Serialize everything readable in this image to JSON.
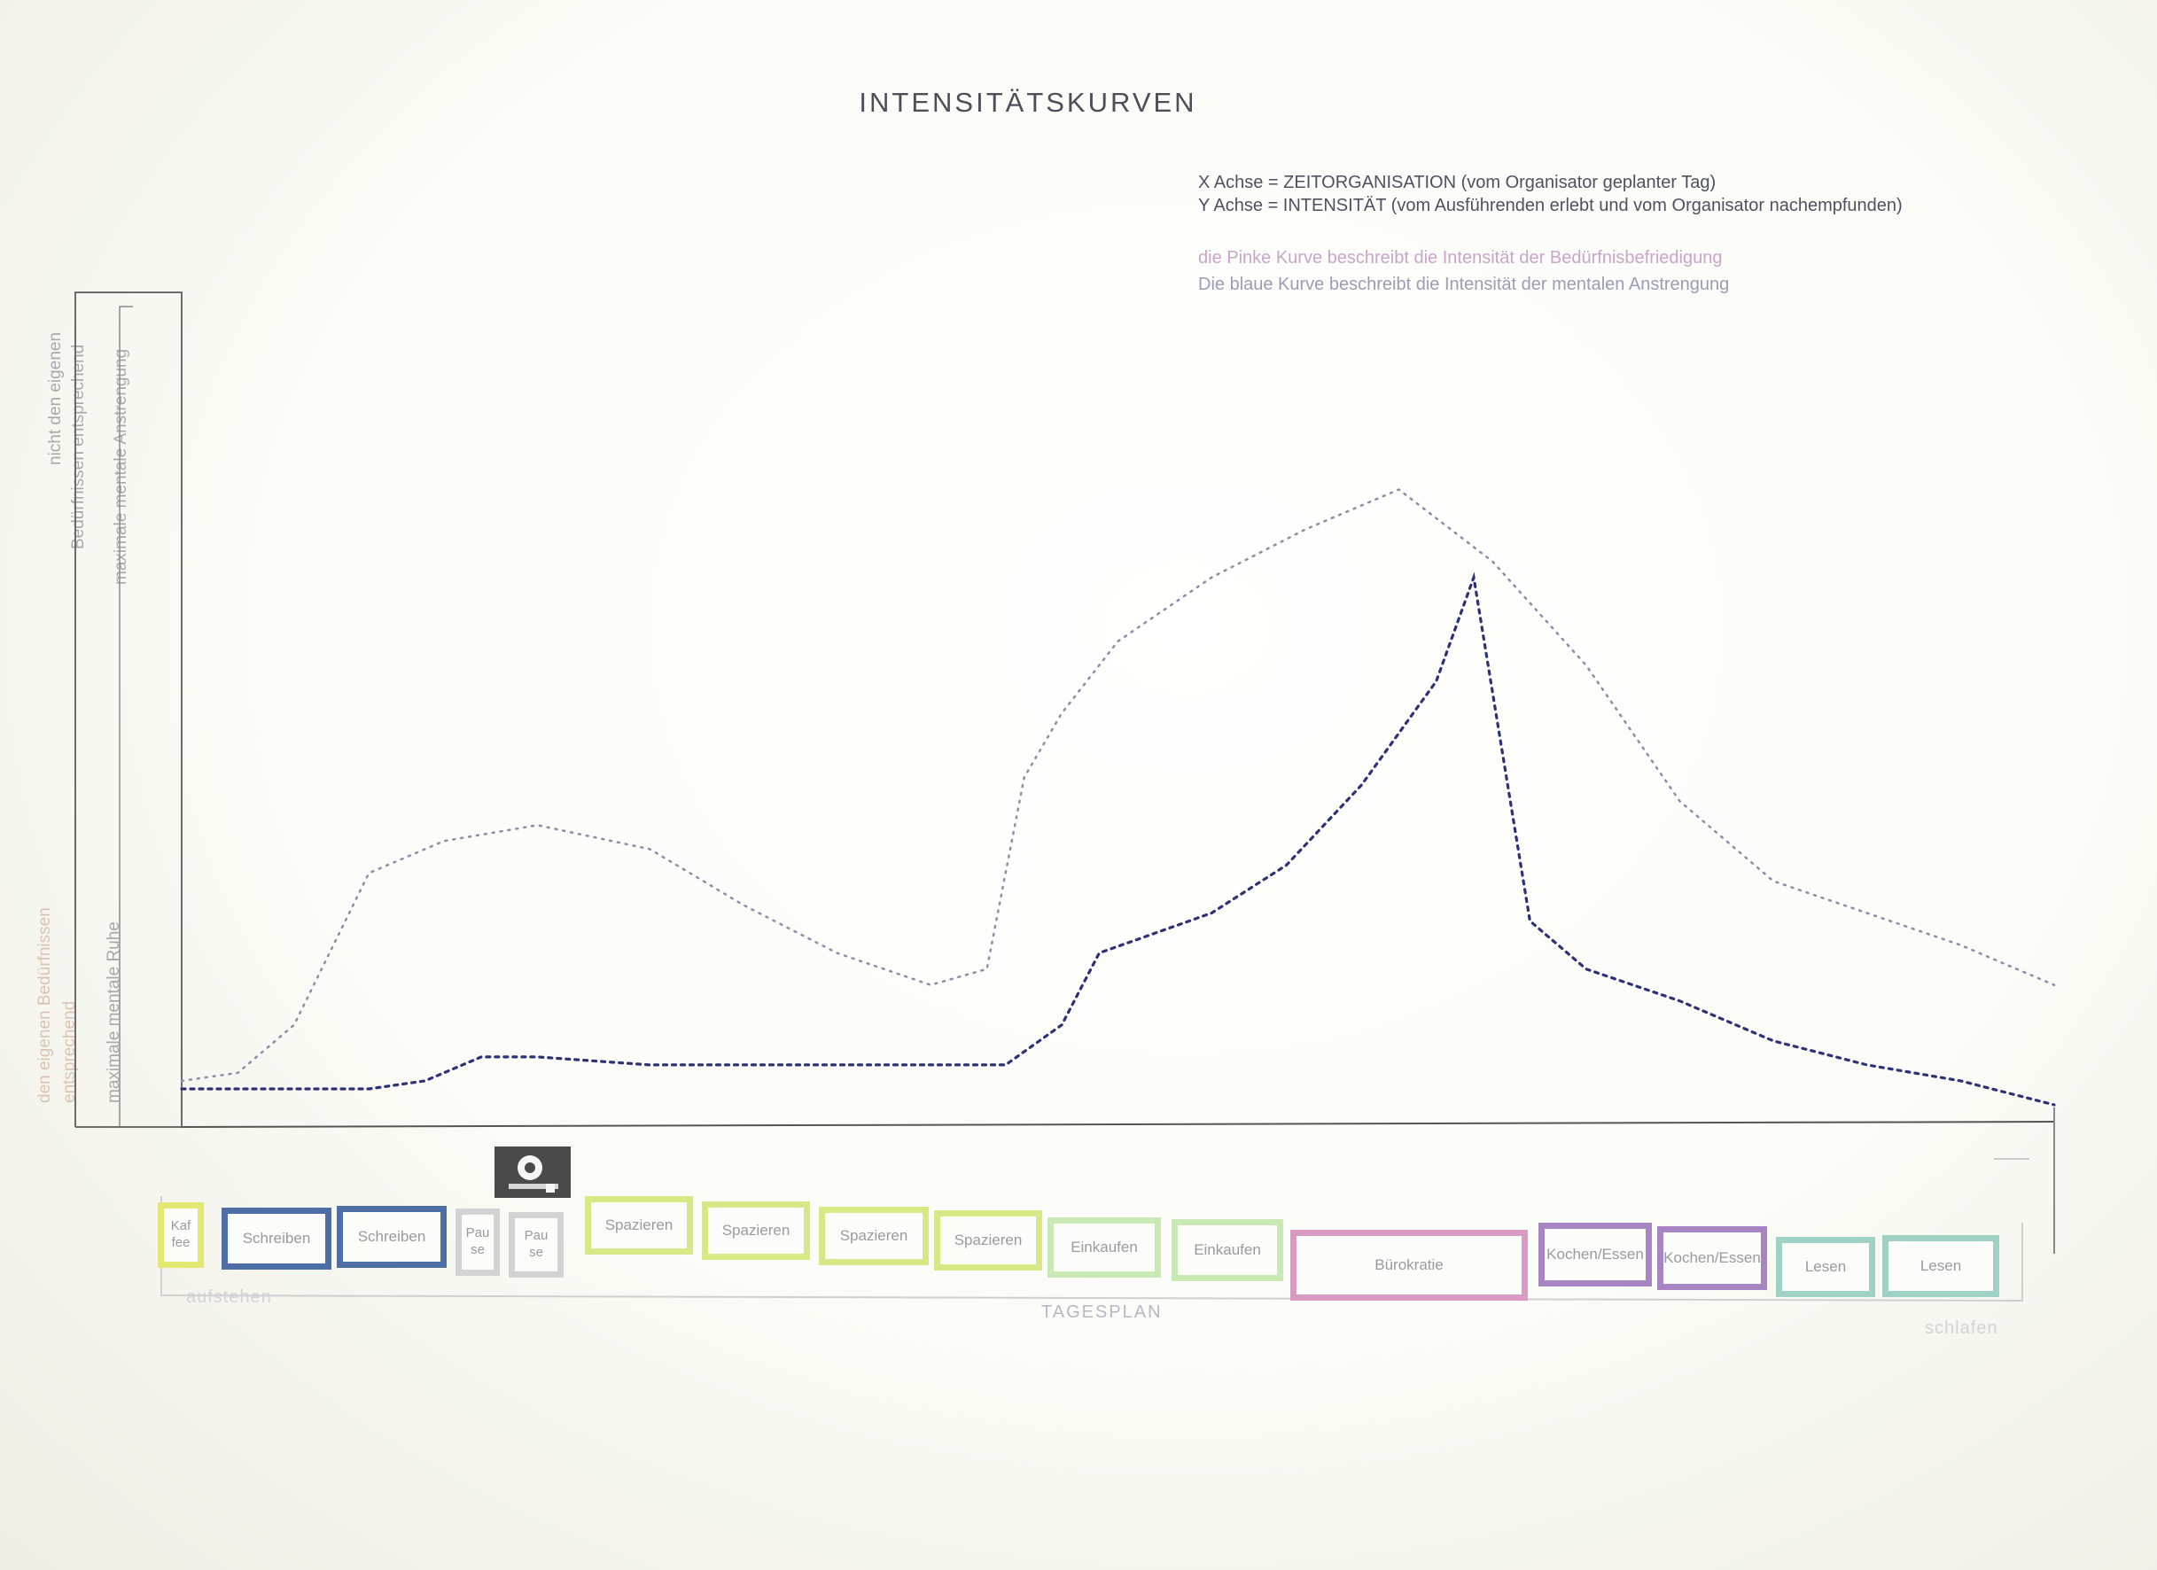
{
  "title": "INTENSITÄTSKURVEN",
  "legend": {
    "x_axis": "X Achse = ZEITORGANISATION (vom Organisator geplanter Tag)",
    "y_axis": "Y Achse = INTENSITÄT (vom Ausführenden erlebt und vom Organisator nachempfunden)",
    "pink_curve": "die Pinke Kurve beschreibt die Intensität der Bedürfnisbefriedigung",
    "blue_curve": "Die blaue Kurve beschreibt die Intensität der mentalen Anstrengung"
  },
  "y_labels": {
    "top_1": "nicht den eigenen",
    "top_2": "Bedürfnissen entsprechend",
    "top_3": "maximale mentale Anstrengung",
    "bottom_1": "den eigenen Bedürfnissen",
    "bottom_2": "entsprechend",
    "bottom_3": "maximale mentale Ruhe"
  },
  "axis_labels": {
    "start": "aufstehen",
    "middle": "TAGESPLAN",
    "end": "schlafen"
  },
  "colors": {
    "pink_curve": "#8e8ca6",
    "blue_curve": "#2f3177",
    "kaffee": "#e3e872",
    "schreiben": "#4d6fa5",
    "pause": "#d3d3d3",
    "spazieren": "#d5ea86",
    "einkaufen": "#c9eab5",
    "buerokratie": "#d99ac4",
    "kochen": "#a785c2",
    "lesen": "#9fd2c4"
  },
  "icon": "camera-icon",
  "chart_data": {
    "type": "line",
    "title": "INTENSITÄTSKURVEN",
    "xlabel": "TAGESPLAN",
    "ylabel": "",
    "ylim": [
      0,
      100
    ],
    "xlim": [
      0,
      100
    ],
    "grid": false,
    "series": [
      {
        "name": "die Pinke Kurve beschreibt die Intensität der Bedürfnisbefriedigung",
        "style": "dotted",
        "x": [
          0,
          3,
          6,
          10,
          14,
          19,
          25,
          30,
          35,
          40,
          43,
          45,
          47,
          50,
          55,
          60,
          65,
          70,
          75,
          80,
          85,
          90,
          95,
          98,
          100
        ],
        "y": [
          3,
          4,
          10,
          29,
          33,
          35,
          32,
          25,
          19,
          15,
          17,
          41,
          49,
          58,
          66,
          72,
          77,
          68,
          55,
          38,
          28,
          24,
          20,
          17,
          15
        ]
      },
      {
        "name": "Die blaue Kurve beschreibt die Intensität der mentalen Anstrengung",
        "style": "dotted",
        "x": [
          0,
          5,
          10,
          13,
          16,
          19,
          25,
          30,
          35,
          40,
          44,
          47,
          49,
          55,
          59,
          63,
          67,
          69,
          72,
          75,
          80,
          85,
          90,
          95,
          100
        ],
        "y": [
          2,
          2,
          2,
          3,
          6,
          6,
          5,
          5,
          5,
          5,
          5,
          10,
          19,
          24,
          30,
          40,
          53,
          66,
          23,
          17,
          13,
          8,
          5,
          3,
          0
        ]
      }
    ]
  },
  "schedule": [
    {
      "label": "Kaf fee",
      "color": "kaffee"
    },
    {
      "label": "Schreiben",
      "color": "schreiben"
    },
    {
      "label": "Schreiben",
      "color": "schreiben"
    },
    {
      "label": "Pau se",
      "color": "pause"
    },
    {
      "label": "Pau se",
      "color": "pause"
    },
    {
      "label": "Spazieren",
      "color": "spazieren"
    },
    {
      "label": "Spazieren",
      "color": "spazieren"
    },
    {
      "label": "Spazieren",
      "color": "spazieren"
    },
    {
      "label": "Spazieren",
      "color": "spazieren"
    },
    {
      "label": "Einkaufen",
      "color": "einkaufen"
    },
    {
      "label": "Einkaufen",
      "color": "einkaufen"
    },
    {
      "label": "Bürokratie",
      "color": "buerokratie"
    },
    {
      "label": "Kochen/Essen",
      "color": "kochen"
    },
    {
      "label": "Kochen/Essen",
      "color": "kochen"
    },
    {
      "label": "Lesen",
      "color": "lesen"
    },
    {
      "label": "Lesen",
      "color": "lesen"
    }
  ]
}
